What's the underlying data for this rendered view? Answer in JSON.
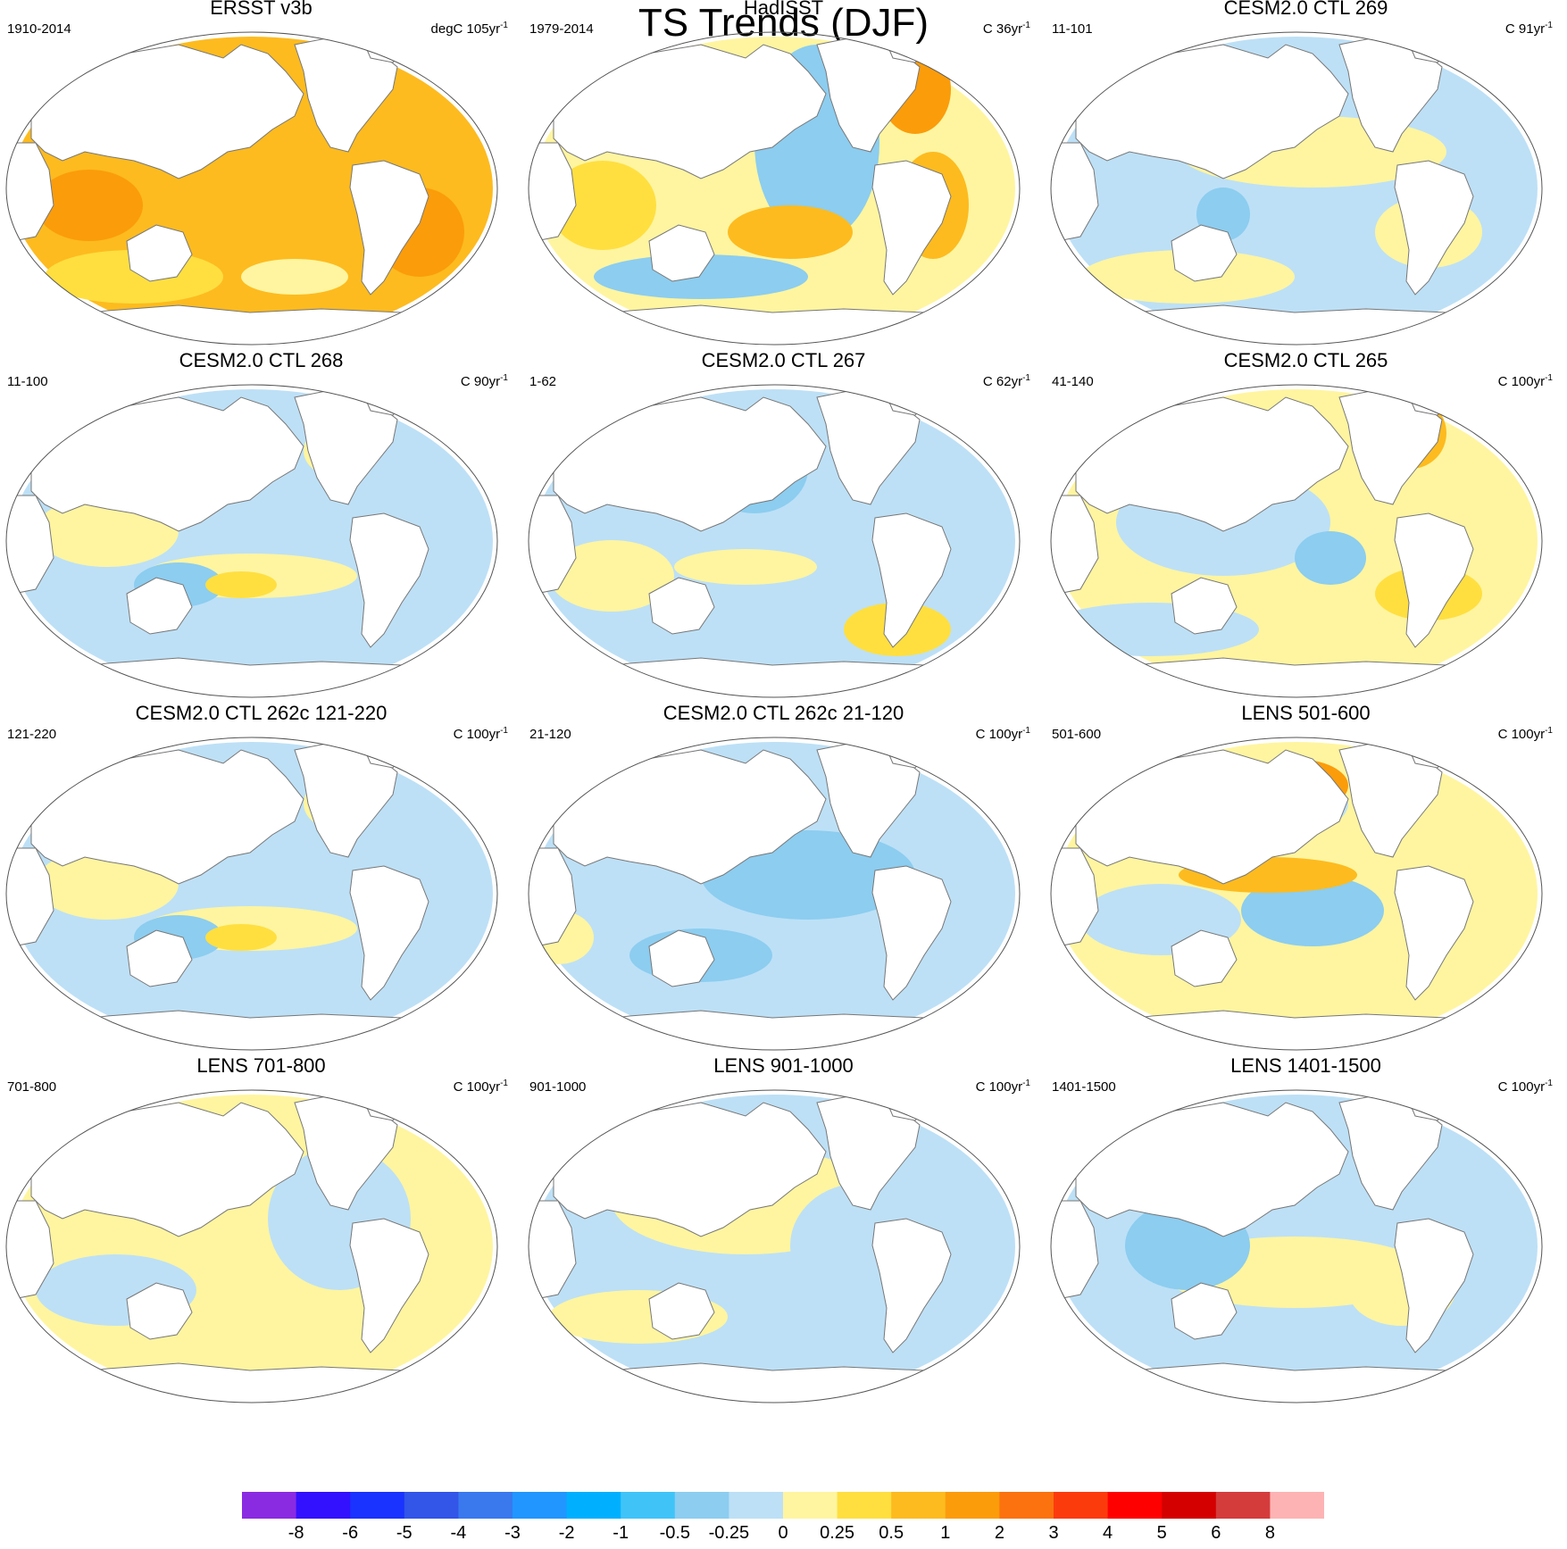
{
  "title": "TS Trends (DJF)",
  "panels": [
    {
      "title": "ERSST v3b",
      "period": "1910-2014",
      "units_base": "degC 105yr",
      "units_exp": "-1",
      "pattern": "warm_strong"
    },
    {
      "title": "HadISST",
      "period": "1979-2014",
      "units_base": "C 36yr",
      "units_exp": "-1",
      "pattern": "warm_mixed"
    },
    {
      "title": "CESM2.0 CTL 269",
      "period": "11-101",
      "units_base": "C 91yr",
      "units_exp": "-1",
      "pattern": "mixed_a"
    },
    {
      "title": "CESM2.0 CTL 268",
      "period": "11-100",
      "units_base": "C 90yr",
      "units_exp": "-1",
      "pattern": "mixed_cool"
    },
    {
      "title": "CESM2.0 CTL 267",
      "period": "1-62",
      "units_base": "C 62yr",
      "units_exp": "-1",
      "pattern": "cool_a"
    },
    {
      "title": "CESM2.0 CTL 265",
      "period": "41-140",
      "units_base": "C 100yr",
      "units_exp": "-1",
      "pattern": "mixed_b"
    },
    {
      "title": "CESM2.0 CTL 262c 121-220",
      "period": "121-220",
      "units_base": "C 100yr",
      "units_exp": "-1",
      "pattern": "mixed_cool"
    },
    {
      "title": "CESM2.0 CTL 262c 21-120",
      "period": "21-120",
      "units_base": "C 100yr",
      "units_exp": "-1",
      "pattern": "cool_b"
    },
    {
      "title": "LENS 501-600",
      "period": "501-600",
      "units_base": "C 100yr",
      "units_exp": "-1",
      "pattern": "mixed_c"
    },
    {
      "title": "LENS 701-800",
      "period": "701-800",
      "units_base": "C 100yr",
      "units_exp": "-1",
      "pattern": "mixed_d"
    },
    {
      "title": "LENS 901-1000",
      "period": "901-1000",
      "units_base": "C 100yr",
      "units_exp": "-1",
      "pattern": "mixed_e"
    },
    {
      "title": "LENS 1401-1500",
      "period": "1401-1500",
      "units_base": "C 100yr",
      "units_exp": "-1",
      "pattern": "mixed_f"
    }
  ],
  "colorbar": {
    "colors": [
      "#8a2be2",
      "#3311ff",
      "#1a33ff",
      "#3355e8",
      "#3a78ee",
      "#2196ff",
      "#00b0ff",
      "#40c4f8",
      "#8ccdf0",
      "#bde0f6",
      "#fff5a0",
      "#ffdf40",
      "#fdbb1f",
      "#fb9c0b",
      "#fb720f",
      "#fc3b0c",
      "#ff0000",
      "#d40000",
      "#d43c3c",
      "#fdb3b3"
    ],
    "labels": [
      "-8",
      "-6",
      "-5",
      "-4",
      "-3",
      "-2",
      "-1",
      "-0.5",
      "-0.25",
      "0",
      "0.25",
      "0.5",
      "1",
      "2",
      "3",
      "4",
      "5",
      "6",
      "8"
    ]
  },
  "colors": {
    "land": "#ffffff",
    "coast": "#777777",
    "frame": "#555555"
  }
}
